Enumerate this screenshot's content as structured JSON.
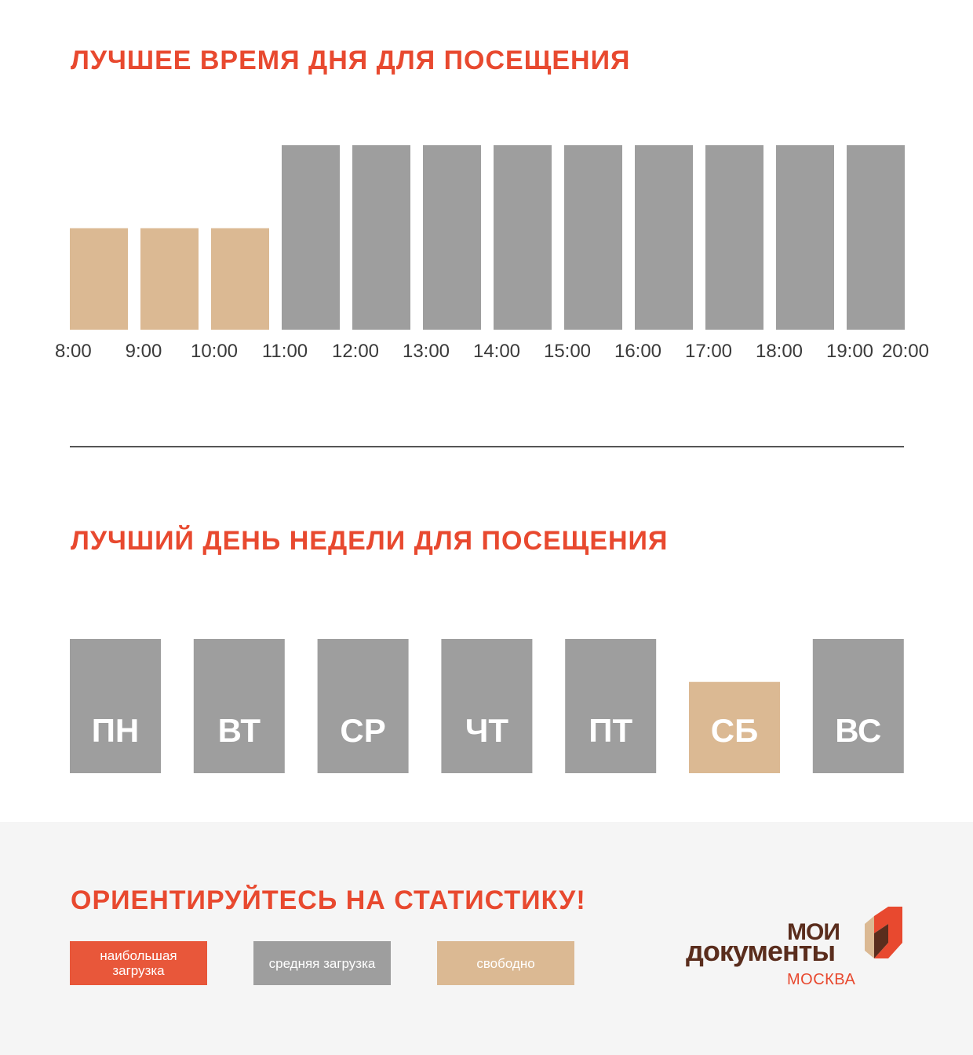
{
  "titles": {
    "time": "ЛУЧШЕЕ ВРЕМЯ ДНЯ ДЛЯ ПОСЕЩЕНИЯ",
    "day": "ЛУЧШИЙ ДЕНЬ НЕДЕЛИ ДЛЯ ПОСЕЩЕНИЯ",
    "footer": "ОРИЕНТИРУЙТЕСЬ НА СТАТИСТИКУ!"
  },
  "colors": {
    "accent": "#e8492f",
    "busy": "#e8573a",
    "medium": "#9e9e9e",
    "free": "#dbb993",
    "brand_dark": "#5a2d1d"
  },
  "chart_data": [
    {
      "type": "bar",
      "title": "ЛУЧШЕЕ ВРЕМЯ ДНЯ ДЛЯ ПОСЕЩЕНИЯ",
      "x_ticks": [
        "8:00",
        "9:00",
        "10:00",
        "11:00",
        "12:00",
        "13:00",
        "14:00",
        "15:00",
        "16:00",
        "17:00",
        "18:00",
        "19:00",
        "20:00"
      ],
      "values": [
        0.55,
        0.55,
        0.55,
        1,
        1,
        1,
        1,
        1,
        1,
        1,
        1,
        1
      ],
      "status": [
        "free",
        "free",
        "free",
        "medium",
        "medium",
        "medium",
        "medium",
        "medium",
        "medium",
        "medium",
        "medium",
        "medium"
      ],
      "ylim": [
        0,
        1
      ]
    },
    {
      "type": "bar",
      "title": "ЛУЧШИЙ ДЕНЬ НЕДЕЛИ ДЛЯ ПОСЕЩЕНИЯ",
      "categories": [
        "ПН",
        "ВТ",
        "СР",
        "ЧТ",
        "ПТ",
        "СБ",
        "ВС"
      ],
      "values": [
        1,
        1,
        1,
        1,
        1,
        0.68,
        1
      ],
      "status": [
        "medium",
        "medium",
        "medium",
        "medium",
        "medium",
        "free",
        "medium"
      ],
      "ylim": [
        0,
        1
      ]
    }
  ],
  "legend": {
    "high": "наибольшая загрузка",
    "medium": "средняя загрузка",
    "free": "свободно"
  },
  "logo": {
    "line1": "МОИ",
    "line2": "документы",
    "city": "МОСКВА"
  }
}
